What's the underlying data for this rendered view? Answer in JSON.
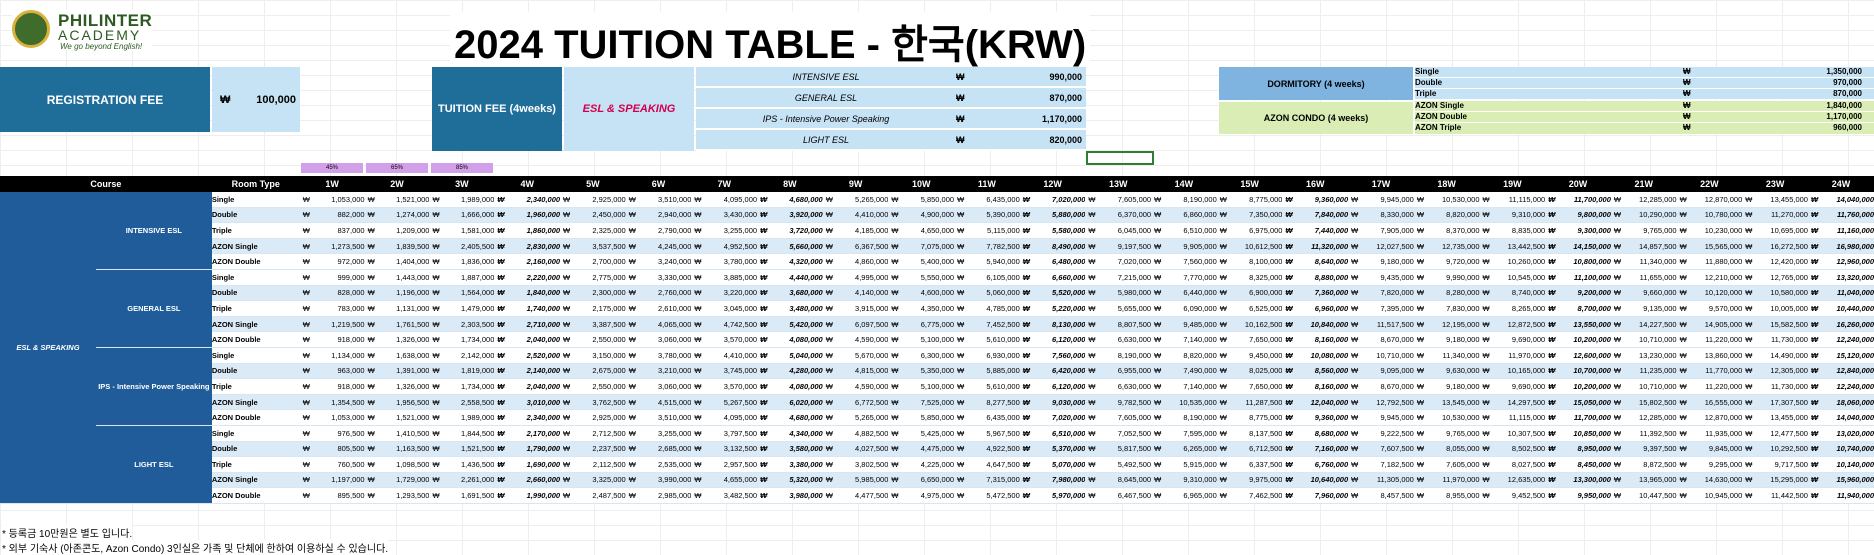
{
  "brand": {
    "name": "PHILINTER",
    "name2": "ACADEMY",
    "tagline": "We go beyond English!"
  },
  "title": "2024 TUITION TABLE - 한국(KRW)",
  "registration": {
    "label": "REGISTRATION FEE",
    "currency": "₩",
    "amount": "100,000"
  },
  "tuition": {
    "label": "TUITION FEE (4weeks)",
    "program_label": "ESL & SPEAKING",
    "rows": [
      {
        "name": "INTENSIVE ESL",
        "currency": "₩",
        "amount": "990,000"
      },
      {
        "name": "GENERAL ESL",
        "currency": "₩",
        "amount": "870,000"
      },
      {
        "name": "IPS - Intensive Power Speaking",
        "currency": "₩",
        "amount": "1,170,000"
      },
      {
        "name": "LIGHT ESL",
        "currency": "₩",
        "amount": "820,000"
      }
    ]
  },
  "dormitory": {
    "label": "DORMITORY (4 weeks)",
    "rows": [
      {
        "name": "Single",
        "currency": "₩",
        "amount": "1,350,000"
      },
      {
        "name": "Double",
        "currency": "₩",
        "amount": "970,000"
      },
      {
        "name": "Triple",
        "currency": "₩",
        "amount": "870,000"
      }
    ]
  },
  "condo": {
    "label": "AZON CONDO (4 weeks)",
    "rows": [
      {
        "name": "AZON Single",
        "currency": "₩",
        "amount": "1,840,000"
      },
      {
        "name": "AZON Double",
        "currency": "₩",
        "amount": "1,170,000"
      },
      {
        "name": "AZON Triple",
        "currency": "₩",
        "amount": "960,000"
      }
    ]
  },
  "percent_tags": [
    "45%",
    "65%",
    "85%"
  ],
  "table": {
    "header": {
      "course": "Course",
      "room_type": "Room Type",
      "weeks": [
        "1W",
        "2W",
        "3W",
        "4W",
        "5W",
        "6W",
        "7W",
        "8W",
        "9W",
        "10W",
        "11W",
        "12W",
        "13W",
        "14W",
        "15W",
        "16W",
        "17W",
        "18W",
        "19W",
        "20W",
        "21W",
        "22W",
        "23W",
        "24W"
      ]
    },
    "currency": "₩",
    "course_name": "ESL & SPEAKING",
    "programs": [
      {
        "name": "INTENSIVE ESL",
        "rows": [
          {
            "room": "Single",
            "values": [
              "1,053,000",
              "1,521,000",
              "1,989,000",
              "2,340,000",
              "2,925,000",
              "3,510,000",
              "4,095,000",
              "4,680,000",
              "5,265,000",
              "5,850,000",
              "6,435,000",
              "7,020,000",
              "7,605,000",
              "8,190,000",
              "8,775,000",
              "9,360,000",
              "9,945,000",
              "10,530,000",
              "11,115,000",
              "11,700,000",
              "12,285,000",
              "12,870,000",
              "13,455,000",
              "14,040,000"
            ]
          },
          {
            "room": "Double",
            "values": [
              "882,000",
              "1,274,000",
              "1,666,000",
              "1,960,000",
              "2,450,000",
              "2,940,000",
              "3,430,000",
              "3,920,000",
              "4,410,000",
              "4,900,000",
              "5,390,000",
              "5,880,000",
              "6,370,000",
              "6,860,000",
              "7,350,000",
              "7,840,000",
              "8,330,000",
              "8,820,000",
              "9,310,000",
              "9,800,000",
              "10,290,000",
              "10,780,000",
              "11,270,000",
              "11,760,000"
            ]
          },
          {
            "room": "Triple",
            "values": [
              "837,000",
              "1,209,000",
              "1,581,000",
              "1,860,000",
              "2,325,000",
              "2,790,000",
              "3,255,000",
              "3,720,000",
              "4,185,000",
              "4,650,000",
              "5,115,000",
              "5,580,000",
              "6,045,000",
              "6,510,000",
              "6,975,000",
              "7,440,000",
              "7,905,000",
              "8,370,000",
              "8,835,000",
              "9,300,000",
              "9,765,000",
              "10,230,000",
              "10,695,000",
              "11,160,000"
            ]
          },
          {
            "room": "AZON Single",
            "values": [
              "1,273,500",
              "1,839,500",
              "2,405,500",
              "2,830,000",
              "3,537,500",
              "4,245,000",
              "4,952,500",
              "5,660,000",
              "6,367,500",
              "7,075,000",
              "7,782,500",
              "8,490,000",
              "9,197,500",
              "9,905,000",
              "10,612,500",
              "11,320,000",
              "12,027,500",
              "12,735,000",
              "13,442,500",
              "14,150,000",
              "14,857,500",
              "15,565,000",
              "16,272,500",
              "16,980,000"
            ]
          },
          {
            "room": "AZON Double",
            "values": [
              "972,000",
              "1,404,000",
              "1,836,000",
              "2,160,000",
              "2,700,000",
              "3,240,000",
              "3,780,000",
              "4,320,000",
              "4,860,000",
              "5,400,000",
              "5,940,000",
              "6,480,000",
              "7,020,000",
              "7,560,000",
              "8,100,000",
              "8,640,000",
              "9,180,000",
              "9,720,000",
              "10,260,000",
              "10,800,000",
              "11,340,000",
              "11,880,000",
              "12,420,000",
              "12,960,000"
            ]
          }
        ]
      },
      {
        "name": "GENERAL ESL",
        "rows": [
          {
            "room": "Single",
            "values": [
              "999,000",
              "1,443,000",
              "1,887,000",
              "2,220,000",
              "2,775,000",
              "3,330,000",
              "3,885,000",
              "4,440,000",
              "4,995,000",
              "5,550,000",
              "6,105,000",
              "6,660,000",
              "7,215,000",
              "7,770,000",
              "8,325,000",
              "8,880,000",
              "9,435,000",
              "9,990,000",
              "10,545,000",
              "11,100,000",
              "11,655,000",
              "12,210,000",
              "12,765,000",
              "13,320,000"
            ]
          },
          {
            "room": "Double",
            "values": [
              "828,000",
              "1,196,000",
              "1,564,000",
              "1,840,000",
              "2,300,000",
              "2,760,000",
              "3,220,000",
              "3,680,000",
              "4,140,000",
              "4,600,000",
              "5,060,000",
              "5,520,000",
              "5,980,000",
              "6,440,000",
              "6,900,000",
              "7,360,000",
              "7,820,000",
              "8,280,000",
              "8,740,000",
              "9,200,000",
              "9,660,000",
              "10,120,000",
              "10,580,000",
              "11,040,000"
            ]
          },
          {
            "room": "Triple",
            "values": [
              "783,000",
              "1,131,000",
              "1,479,000",
              "1,740,000",
              "2,175,000",
              "2,610,000",
              "3,045,000",
              "3,480,000",
              "3,915,000",
              "4,350,000",
              "4,785,000",
              "5,220,000",
              "5,655,000",
              "6,090,000",
              "6,525,000",
              "6,960,000",
              "7,395,000",
              "7,830,000",
              "8,265,000",
              "8,700,000",
              "9,135,000",
              "9,570,000",
              "10,005,000",
              "10,440,000"
            ]
          },
          {
            "room": "AZON Single",
            "values": [
              "1,219,500",
              "1,761,500",
              "2,303,500",
              "2,710,000",
              "3,387,500",
              "4,065,000",
              "4,742,500",
              "5,420,000",
              "6,097,500",
              "6,775,000",
              "7,452,500",
              "8,130,000",
              "8,807,500",
              "9,485,000",
              "10,162,500",
              "10,840,000",
              "11,517,500",
              "12,195,000",
              "12,872,500",
              "13,550,000",
              "14,227,500",
              "14,905,000",
              "15,582,500",
              "16,260,000"
            ]
          },
          {
            "room": "AZON Double",
            "values": [
              "918,000",
              "1,326,000",
              "1,734,000",
              "2,040,000",
              "2,550,000",
              "3,060,000",
              "3,570,000",
              "4,080,000",
              "4,590,000",
              "5,100,000",
              "5,610,000",
              "6,120,000",
              "6,630,000",
              "7,140,000",
              "7,650,000",
              "8,160,000",
              "8,670,000",
              "9,180,000",
              "9,690,000",
              "10,200,000",
              "10,710,000",
              "11,220,000",
              "11,730,000",
              "12,240,000"
            ]
          }
        ]
      },
      {
        "name": "IPS - Intensive Power Speaking",
        "rows": [
          {
            "room": "Single",
            "values": [
              "1,134,000",
              "1,638,000",
              "2,142,000",
              "2,520,000",
              "3,150,000",
              "3,780,000",
              "4,410,000",
              "5,040,000",
              "5,670,000",
              "6,300,000",
              "6,930,000",
              "7,560,000",
              "8,190,000",
              "8,820,000",
              "9,450,000",
              "10,080,000",
              "10,710,000",
              "11,340,000",
              "11,970,000",
              "12,600,000",
              "13,230,000",
              "13,860,000",
              "14,490,000",
              "15,120,000"
            ]
          },
          {
            "room": "Double",
            "values": [
              "963,000",
              "1,391,000",
              "1,819,000",
              "2,140,000",
              "2,675,000",
              "3,210,000",
              "3,745,000",
              "4,280,000",
              "4,815,000",
              "5,350,000",
              "5,885,000",
              "6,420,000",
              "6,955,000",
              "7,490,000",
              "8,025,000",
              "8,560,000",
              "9,095,000",
              "9,630,000",
              "10,165,000",
              "10,700,000",
              "11,235,000",
              "11,770,000",
              "12,305,000",
              "12,840,000"
            ]
          },
          {
            "room": "Triple",
            "values": [
              "918,000",
              "1,326,000",
              "1,734,000",
              "2,040,000",
              "2,550,000",
              "3,060,000",
              "3,570,000",
              "4,080,000",
              "4,590,000",
              "5,100,000",
              "5,610,000",
              "6,120,000",
              "6,630,000",
              "7,140,000",
              "7,650,000",
              "8,160,000",
              "8,670,000",
              "9,180,000",
              "9,690,000",
              "10,200,000",
              "10,710,000",
              "11,220,000",
              "11,730,000",
              "12,240,000"
            ]
          },
          {
            "room": "AZON Single",
            "values": [
              "1,354,500",
              "1,956,500",
              "2,558,500",
              "3,010,000",
              "3,762,500",
              "4,515,000",
              "5,267,500",
              "6,020,000",
              "6,772,500",
              "7,525,000",
              "8,277,500",
              "9,030,000",
              "9,782,500",
              "10,535,000",
              "11,287,500",
              "12,040,000",
              "12,792,500",
              "13,545,000",
              "14,297,500",
              "15,050,000",
              "15,802,500",
              "16,555,000",
              "17,307,500",
              "18,060,000"
            ]
          },
          {
            "room": "AZON Double",
            "values": [
              "1,053,000",
              "1,521,000",
              "1,989,000",
              "2,340,000",
              "2,925,000",
              "3,510,000",
              "4,095,000",
              "4,680,000",
              "5,265,000",
              "5,850,000",
              "6,435,000",
              "7,020,000",
              "7,605,000",
              "8,190,000",
              "8,775,000",
              "9,360,000",
              "9,945,000",
              "10,530,000",
              "11,115,000",
              "11,700,000",
              "12,285,000",
              "12,870,000",
              "13,455,000",
              "14,040,000"
            ]
          }
        ]
      },
      {
        "name": "LIGHT ESL",
        "rows": [
          {
            "room": "Single",
            "values": [
              "976,500",
              "1,410,500",
              "1,844,500",
              "2,170,000",
              "2,712,500",
              "3,255,000",
              "3,797,500",
              "4,340,000",
              "4,882,500",
              "5,425,000",
              "5,967,500",
              "6,510,000",
              "7,052,500",
              "7,595,000",
              "8,137,500",
              "8,680,000",
              "9,222,500",
              "9,765,000",
              "10,307,500",
              "10,850,000",
              "11,392,500",
              "11,935,000",
              "12,477,500",
              "13,020,000"
            ]
          },
          {
            "room": "Double",
            "values": [
              "805,500",
              "1,163,500",
              "1,521,500",
              "1,790,000",
              "2,237,500",
              "2,685,000",
              "3,132,500",
              "3,580,000",
              "4,027,500",
              "4,475,000",
              "4,922,500",
              "5,370,000",
              "5,817,500",
              "6,265,000",
              "6,712,500",
              "7,160,000",
              "7,607,500",
              "8,055,000",
              "8,502,500",
              "8,950,000",
              "9,397,500",
              "9,845,000",
              "10,292,500",
              "10,740,000"
            ]
          },
          {
            "room": "Triple",
            "values": [
              "760,500",
              "1,098,500",
              "1,436,500",
              "1,690,000",
              "2,112,500",
              "2,535,000",
              "2,957,500",
              "3,380,000",
              "3,802,500",
              "4,225,000",
              "4,647,500",
              "5,070,000",
              "5,492,500",
              "5,915,000",
              "6,337,500",
              "6,760,000",
              "7,182,500",
              "7,605,000",
              "8,027,500",
              "8,450,000",
              "8,872,500",
              "9,295,000",
              "9,717,500",
              "10,140,000"
            ]
          },
          {
            "room": "AZON Single",
            "values": [
              "1,197,000",
              "1,729,000",
              "2,261,000",
              "2,660,000",
              "3,325,000",
              "3,990,000",
              "4,655,000",
              "5,320,000",
              "5,985,000",
              "6,650,000",
              "7,315,000",
              "7,980,000",
              "8,645,000",
              "9,310,000",
              "9,975,000",
              "10,640,000",
              "11,305,000",
              "11,970,000",
              "12,635,000",
              "13,300,000",
              "13,965,000",
              "14,630,000",
              "15,295,000",
              "15,960,000"
            ]
          },
          {
            "room": "AZON Double",
            "values": [
              "895,500",
              "1,293,500",
              "1,691,500",
              "1,990,000",
              "2,487,500",
              "2,985,000",
              "3,482,500",
              "3,980,000",
              "4,477,500",
              "4,975,000",
              "5,472,500",
              "5,970,000",
              "6,467,500",
              "6,965,000",
              "7,462,500",
              "7,960,000",
              "8,457,500",
              "8,955,000",
              "9,452,500",
              "9,950,000",
              "10,447,500",
              "10,945,000",
              "11,442,500",
              "11,940,000"
            ]
          }
        ]
      }
    ]
  },
  "notes": [
    "* 등록금 10만원은 별도 입니다.",
    "* 외부 기숙사 (아존콘도, Azon Condo) 3인실은 가족 및 단체에 한하여 이용하실 수 있습니다."
  ],
  "colors": {
    "dark_blue": "#1f6e9a",
    "course_blue": "#1f5c99",
    "light_blue": "#c6e2f5",
    "dorm_blue": "#7fb3e0",
    "condo_green": "#d9edb5",
    "pct_purple": "#d2a0e8",
    "program_red": "#d4004f"
  }
}
